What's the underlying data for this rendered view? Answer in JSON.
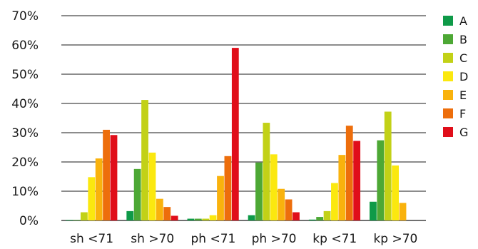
{
  "chart_data": {
    "type": "bar",
    "title": "",
    "xlabel": "",
    "ylabel": "",
    "ylim": [
      0,
      70
    ],
    "y_ticks": [
      0,
      10,
      20,
      30,
      40,
      50,
      60,
      70
    ],
    "y_tick_labels": [
      "0%",
      "10%",
      "20%",
      "30%",
      "40%",
      "50%",
      "60%",
      "70%"
    ],
    "grid": true,
    "legend_position": "right",
    "categories": [
      "sh <71",
      "sh >70",
      "ph <71",
      "ph >70",
      "kp <71",
      "kp >70"
    ],
    "series": [
      {
        "name": "A",
        "color": "#0e9a48",
        "values": [
          0.2,
          3.2,
          0.6,
          1.8,
          0.3,
          6.4
        ]
      },
      {
        "name": "B",
        "color": "#4da835",
        "values": [
          0.2,
          17.6,
          0.6,
          19.8,
          1.2,
          27.4
        ]
      },
      {
        "name": "C",
        "color": "#c2d117",
        "values": [
          2.8,
          41.2,
          0.6,
          33.4,
          3.2,
          37.2
        ]
      },
      {
        "name": "D",
        "color": "#fbe80f",
        "values": [
          14.8,
          23.2,
          1.8,
          22.6,
          12.8,
          18.8
        ]
      },
      {
        "name": "E",
        "color": "#f9b20d",
        "values": [
          21.2,
          7.4,
          15.2,
          10.8,
          22.4,
          6.0
        ]
      },
      {
        "name": "F",
        "color": "#ed6e0c",
        "values": [
          31.0,
          4.6,
          22.0,
          7.2,
          32.4,
          0
        ]
      },
      {
        "name": "G",
        "color": "#e00e1a",
        "values": [
          29.2,
          1.6,
          59.0,
          2.8,
          27.2,
          0
        ]
      }
    ]
  }
}
